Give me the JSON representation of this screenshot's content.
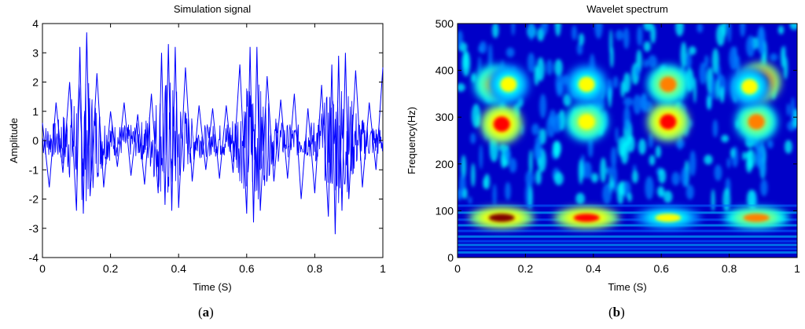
{
  "captions": {
    "a_prefix": "(",
    "a_letter": "a",
    "a_suffix": ")",
    "b_prefix": "(",
    "b_letter": "b",
    "b_suffix": ")"
  },
  "colors": {
    "signal": "#0000ff",
    "axis": "#000000"
  },
  "chart_data": [
    {
      "type": "line",
      "title": "Simulation signal",
      "xlabel": "Time (S)",
      "ylabel": "Amplitude",
      "xlim": [
        0,
        1
      ],
      "ylim": [
        -4,
        4
      ],
      "x_ticks": [
        0,
        0.2,
        0.4,
        0.6,
        0.8,
        1
      ],
      "x_tick_labels": [
        "0",
        "0.2",
        "0.4",
        "0.6",
        "0.8",
        "1"
      ],
      "y_ticks": [
        -4,
        -3,
        -2,
        -1,
        0,
        1,
        2,
        3,
        4
      ],
      "y_tick_labels": [
        "-4",
        "-3",
        "-2",
        "-1",
        "0",
        "1",
        "2",
        "3",
        "4"
      ],
      "grid": false,
      "series": [
        {
          "color": "#0000ff",
          "x": [
            0,
            0.02,
            0.04,
            0.06,
            0.08,
            0.1,
            0.11,
            0.12,
            0.13,
            0.14,
            0.16,
            0.18,
            0.2,
            0.22,
            0.24,
            0.26,
            0.28,
            0.3,
            0.32,
            0.34,
            0.35,
            0.36,
            0.37,
            0.38,
            0.39,
            0.4,
            0.42,
            0.44,
            0.46,
            0.48,
            0.5,
            0.52,
            0.54,
            0.56,
            0.58,
            0.6,
            0.61,
            0.62,
            0.63,
            0.64,
            0.66,
            0.68,
            0.7,
            0.72,
            0.74,
            0.76,
            0.78,
            0.8,
            0.82,
            0.84,
            0.85,
            0.86,
            0.87,
            0.88,
            0.89,
            0.9,
            0.92,
            0.94,
            0.96,
            0.98,
            1
          ],
          "y": [
            0.6,
            -1.6,
            1.3,
            -1.1,
            2.0,
            -2.4,
            3.2,
            -2.5,
            3.7,
            -1.9,
            2.3,
            -1.6,
            1.0,
            -0.9,
            1.3,
            -1.2,
            0.9,
            -1.5,
            1.6,
            -1.8,
            3.0,
            -2.2,
            3.3,
            -2.4,
            3.2,
            -2.3,
            2.5,
            -1.4,
            1.2,
            -1.0,
            1.1,
            -1.3,
            1.2,
            -1.1,
            2.6,
            -2.5,
            3.2,
            -2.8,
            3.2,
            -2.4,
            2.2,
            -1.4,
            1.4,
            -1.3,
            1.6,
            -2.0,
            1.1,
            -1.8,
            1.9,
            -2.6,
            2.6,
            -3.2,
            2.9,
            -2.4,
            3.0,
            -2.0,
            2.4,
            -1.6,
            1.3,
            -1.0,
            2.5
          ]
        }
      ]
    },
    {
      "type": "heatmap",
      "title": "Wavelet spectrum",
      "xlabel": "Time (S)",
      "ylabel": "Frequency(Hz)",
      "xlim": [
        0,
        1
      ],
      "ylim": [
        0,
        500
      ],
      "x_ticks": [
        0,
        0.2,
        0.4,
        0.6,
        0.8,
        1
      ],
      "x_tick_labels": [
        "0",
        "0.2",
        "0.4",
        "0.6",
        "0.8",
        "1"
      ],
      "y_ticks": [
        0,
        100,
        200,
        300,
        400,
        500
      ],
      "y_tick_labels": [
        "0",
        "100",
        "200",
        "300",
        "400",
        "500"
      ],
      "colormap": [
        "#00008f",
        "#0000ff",
        "#0080ff",
        "#00ffff",
        "#80ff80",
        "#ffff00",
        "#ff8000",
        "#ff0000",
        "#800000"
      ],
      "hotspots": [
        {
          "t": 0.13,
          "f": 85,
          "level": 0.95
        },
        {
          "t": 0.13,
          "f": 285,
          "level": 0.9
        },
        {
          "t": 0.11,
          "f": 370,
          "level": 0.65
        },
        {
          "t": 0.15,
          "f": 370,
          "level": 0.6
        },
        {
          "t": 0.38,
          "f": 85,
          "level": 0.9
        },
        {
          "t": 0.38,
          "f": 290,
          "level": 0.65
        },
        {
          "t": 0.38,
          "f": 370,
          "level": 0.6
        },
        {
          "t": 0.62,
          "f": 85,
          "level": 0.6
        },
        {
          "t": 0.62,
          "f": 290,
          "level": 0.9
        },
        {
          "t": 0.62,
          "f": 370,
          "level": 0.75
        },
        {
          "t": 0.88,
          "f": 85,
          "level": 0.75
        },
        {
          "t": 0.88,
          "f": 290,
          "level": 0.75
        },
        {
          "t": 0.89,
          "f": 375,
          "level": 0.98
        },
        {
          "t": 0.86,
          "f": 365,
          "level": 0.6
        }
      ]
    }
  ]
}
